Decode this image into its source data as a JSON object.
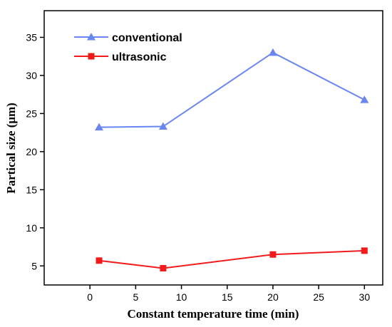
{
  "chart_data": {
    "type": "line",
    "xlabel": "Constant temperature time (min)",
    "ylabel": "Partical size (μm)",
    "xlim": [
      -5,
      32
    ],
    "ylim": [
      2.5,
      38.5
    ],
    "xticks": [
      0,
      5,
      10,
      15,
      20,
      25,
      30
    ],
    "yticks": [
      5,
      10,
      15,
      20,
      25,
      30,
      35
    ],
    "x": [
      1,
      8,
      20,
      30
    ],
    "series": [
      {
        "name": "conventional",
        "values": [
          23.2,
          23.3,
          33.0,
          26.8
        ],
        "color": "#6a86f0",
        "marker": "triangle"
      },
      {
        "name": "ultrasonic",
        "values": [
          5.7,
          4.7,
          6.5,
          7.0
        ],
        "color": "#f21b1b",
        "marker": "square"
      }
    ],
    "legend_position": "top-left",
    "grid": false
  }
}
